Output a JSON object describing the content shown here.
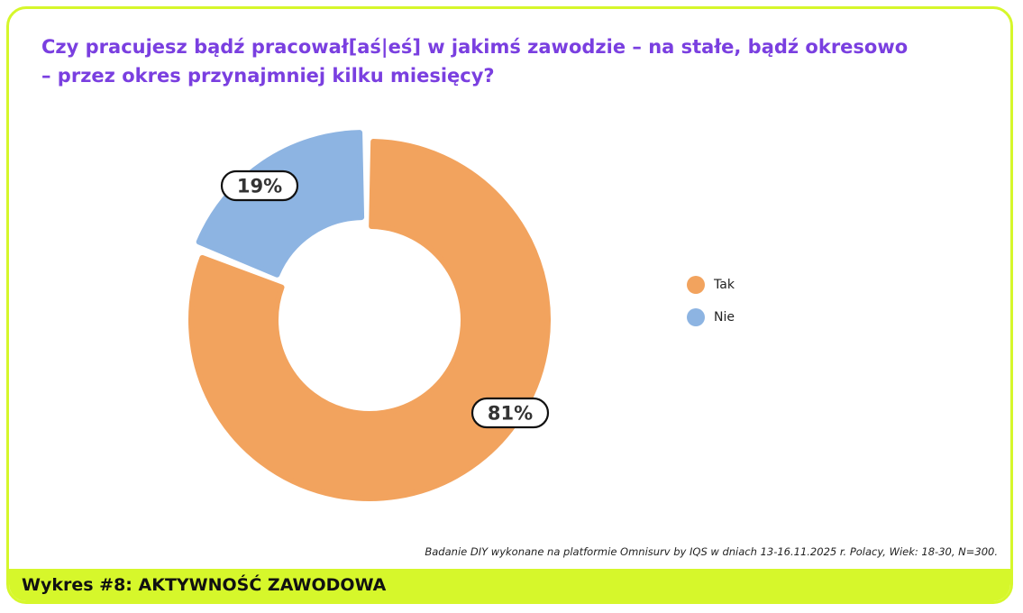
{
  "title_lines": [
    "Czy pracujesz bądź pracował[aś|eś] w jakimś zawodzie – na stałe, bądź okresowo",
    "– przez okres przynajmniej kilku miesięcy?"
  ],
  "source_note": "Badanie DIY wykonane na platformie Omnisurv by IQS w dniach 13-16.11.2025 r.  Polacy, Wiek: 18-30, N=300.",
  "footer_title": "Wykres #8: AKTYWNOŚĆ ZAWODOWA",
  "colors": {
    "accent_border": "#d6f72b",
    "title": "#7a3fe0",
    "tak": "#f2a35e",
    "nie": "#8db4e2"
  },
  "chart_data": {
    "type": "pie",
    "variant": "donut",
    "categories": [
      "Tak",
      "Nie"
    ],
    "values": [
      81,
      19
    ],
    "data_labels": [
      "81%",
      "19%"
    ],
    "colors": [
      "#f2a35e",
      "#8db4e2"
    ],
    "legend_position": "right",
    "exploded_slice": "Nie"
  }
}
